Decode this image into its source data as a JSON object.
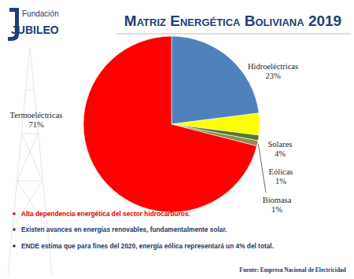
{
  "header": {
    "logo": [
      "Fundación",
      "JUBILEO"
    ]
  },
  "chart_data": {
    "type": "pie",
    "title": "Matriz Energética Boliviana 2019",
    "categories": [
      "Hidroeléctricas",
      "Solares",
      "Eólicas",
      "Biomasa",
      "Termoeléctricas"
    ],
    "values": [
      23,
      4,
      1,
      1,
      71
    ],
    "value_labels": [
      "23%",
      "4%",
      "1%",
      "1%",
      "71%"
    ],
    "colors": [
      "#4f81bd",
      "#ffff00",
      "#4e7a27",
      "#948a54",
      "#ff0000"
    ],
    "data_labels": true
  },
  "notes": [
    "Alta dependencia energética del sector hidrocarburos.",
    "Existen avances en energías renovables, fundamentalmente solar.",
    "ENDE estima que para fines del 2020, energía eólica representará un 4% del total."
  ],
  "source": "Fuente: Empresa Nacional de Electricidad"
}
